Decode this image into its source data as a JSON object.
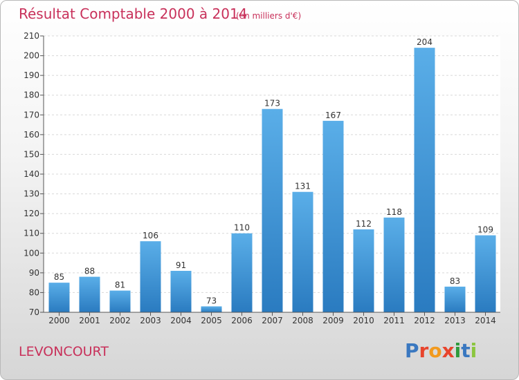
{
  "chart_data": {
    "type": "bar",
    "title": "Résultat Comptable 2000 à 2014",
    "subtitle": "(en milliers d'€)",
    "categories": [
      "2000",
      "2001",
      "2002",
      "2003",
      "2004",
      "2005",
      "2006",
      "2007",
      "2008",
      "2009",
      "2010",
      "2011",
      "2012",
      "2013",
      "2014"
    ],
    "values": [
      85,
      88,
      81,
      106,
      91,
      73,
      110,
      173,
      131,
      167,
      112,
      118,
      204,
      83,
      109
    ],
    "ylim": [
      70,
      210
    ],
    "yticks": [
      70,
      80,
      90,
      100,
      110,
      120,
      130,
      140,
      150,
      160,
      170,
      180,
      190,
      200,
      210
    ],
    "grid": true,
    "xlabel": "",
    "ylabel": ""
  },
  "footer": {
    "town": "LEVONCOURT",
    "logo_letters": [
      "P",
      "r",
      "o",
      "x",
      "i",
      "t",
      "i"
    ]
  },
  "colors": {
    "bar_light": "#5aaee8",
    "bar_dark": "#2a7bc0",
    "title": "#c8305a",
    "logo": [
      "#3a78c0",
      "#e8442c",
      "#f29a1e",
      "#e8442c",
      "#2f9a3c",
      "#3a78c0",
      "#8cc63f"
    ]
  }
}
